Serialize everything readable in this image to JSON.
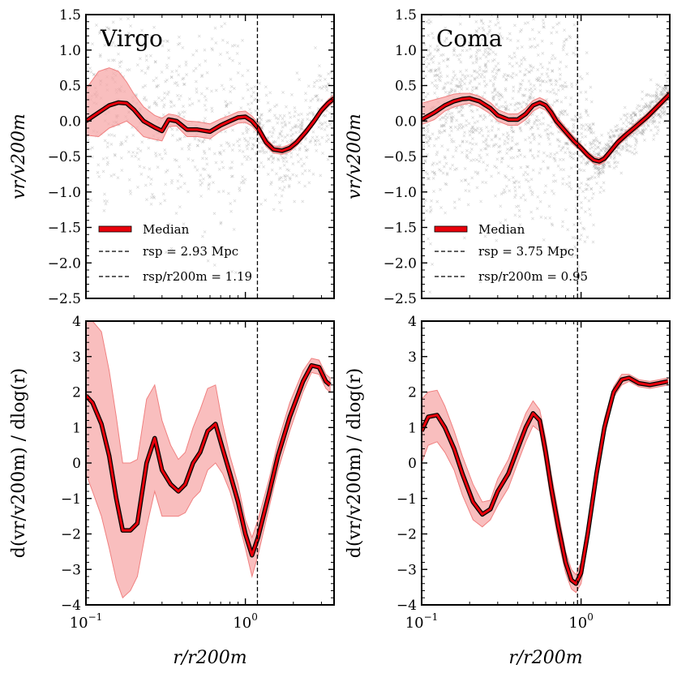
{
  "figure": {
    "xlabel": "r/r200m",
    "ylabel_top": "vr/v200m",
    "ylabel_bottom": "d(vr/v200m) / dlog(r)",
    "x_tick_labels": [
      "10^-1",
      "10^0"
    ],
    "top_y_tick_labels": [
      "1.5",
      "1.0",
      "0.5",
      "0.0",
      "−0.5",
      "−1.0",
      "−1.5",
      "−2.0",
      "−2.5"
    ],
    "bottom_y_tick_labels": [
      "4",
      "3",
      "2",
      "1",
      "0",
      "−1",
      "−2",
      "−3",
      "−4"
    ],
    "colors": {
      "median": "#e8000b",
      "band": "#f7a8a8",
      "scatter": "#9a9a9a",
      "rsp_line": "#000000"
    }
  },
  "chart_data": [
    {
      "type": "line",
      "panel": "top-left",
      "title": "Virgo",
      "xscale": "log",
      "xlim": [
        0.1,
        3.6
      ],
      "ylim": [
        -2.5,
        1.5
      ],
      "x": [
        0.1,
        0.12,
        0.14,
        0.16,
        0.18,
        0.2,
        0.23,
        0.27,
        0.3,
        0.33,
        0.37,
        0.43,
        0.5,
        0.6,
        0.7,
        0.8,
        0.9,
        1.0,
        1.1,
        1.2,
        1.35,
        1.5,
        1.7,
        1.9,
        2.1,
        2.4,
        2.7,
        3.0,
        3.3,
        3.6
      ],
      "series": [
        {
          "name": "Median",
          "values": [
            0.0,
            0.12,
            0.22,
            0.26,
            0.25,
            0.16,
            0.0,
            -0.09,
            -0.14,
            0.02,
            0.0,
            -0.12,
            -0.12,
            -0.15,
            -0.06,
            0.0,
            0.05,
            0.06,
            0.0,
            -0.1,
            -0.3,
            -0.4,
            -0.42,
            -0.38,
            -0.3,
            -0.15,
            0.0,
            0.15,
            0.25,
            0.32
          ]
        },
        {
          "name": "band_upper",
          "values": [
            0.45,
            0.7,
            0.75,
            0.7,
            0.55,
            0.38,
            0.2,
            0.08,
            0.04,
            0.1,
            0.08,
            0.0,
            -0.01,
            -0.04,
            0.03,
            0.08,
            0.13,
            0.14,
            0.07,
            -0.03,
            -0.24,
            -0.35,
            -0.37,
            -0.33,
            -0.25,
            -0.1,
            0.05,
            0.2,
            0.3,
            0.37
          ]
        },
        {
          "name": "band_lower",
          "values": [
            -0.2,
            -0.22,
            -0.1,
            -0.05,
            0.0,
            -0.08,
            -0.22,
            -0.26,
            -0.28,
            -0.08,
            -0.07,
            -0.22,
            -0.22,
            -0.25,
            -0.14,
            -0.08,
            -0.03,
            -0.02,
            -0.07,
            -0.17,
            -0.36,
            -0.45,
            -0.47,
            -0.43,
            -0.35,
            -0.2,
            -0.05,
            0.1,
            0.2,
            0.27
          ]
        }
      ],
      "vline_x": 1.19,
      "legend": {
        "position": "lower-left",
        "entries": [
          "Median",
          "rsp = 2.93 Mpc",
          "rsp/r200m = 1.19"
        ]
      }
    },
    {
      "type": "line",
      "panel": "top-right",
      "title": "Coma",
      "xscale": "log",
      "xlim": [
        0.1,
        3.6
      ],
      "ylim": [
        -2.5,
        1.5
      ],
      "x": [
        0.1,
        0.12,
        0.14,
        0.16,
        0.18,
        0.2,
        0.23,
        0.27,
        0.3,
        0.35,
        0.4,
        0.45,
        0.5,
        0.55,
        0.6,
        0.65,
        0.7,
        0.8,
        0.9,
        1.0,
        1.1,
        1.2,
        1.3,
        1.4,
        1.5,
        1.7,
        1.9,
        2.2,
        2.6,
        3.0,
        3.6
      ],
      "series": [
        {
          "name": "Median",
          "values": [
            0.02,
            0.12,
            0.22,
            0.28,
            0.31,
            0.32,
            0.28,
            0.18,
            0.08,
            0.02,
            0.02,
            0.1,
            0.22,
            0.26,
            0.22,
            0.12,
            0.0,
            -0.15,
            -0.28,
            -0.38,
            -0.48,
            -0.55,
            -0.57,
            -0.53,
            -0.45,
            -0.3,
            -0.2,
            -0.08,
            0.06,
            0.2,
            0.38
          ]
        },
        {
          "name": "band_upper",
          "values": [
            0.25,
            0.3,
            0.34,
            0.38,
            0.39,
            0.39,
            0.35,
            0.26,
            0.16,
            0.1,
            0.1,
            0.18,
            0.29,
            0.33,
            0.29,
            0.19,
            0.07,
            -0.09,
            -0.22,
            -0.33,
            -0.43,
            -0.5,
            -0.52,
            -0.48,
            -0.4,
            -0.25,
            -0.15,
            -0.03,
            0.11,
            0.25,
            0.43
          ]
        },
        {
          "name": "band_lower",
          "values": [
            -0.05,
            0.02,
            0.14,
            0.2,
            0.23,
            0.25,
            0.2,
            0.1,
            0.0,
            -0.06,
            -0.06,
            0.02,
            0.14,
            0.19,
            0.15,
            0.05,
            -0.07,
            -0.21,
            -0.34,
            -0.43,
            -0.53,
            -0.6,
            -0.62,
            -0.58,
            -0.5,
            -0.35,
            -0.25,
            -0.13,
            0.01,
            0.15,
            0.33
          ]
        }
      ],
      "vline_x": 0.95,
      "legend": {
        "position": "lower-left",
        "entries": [
          "Median",
          "rsp = 3.75 Mpc",
          "rsp/r200m = 0.95"
        ]
      }
    },
    {
      "type": "line",
      "panel": "bottom-left",
      "xscale": "log",
      "xlim": [
        0.1,
        3.6
      ],
      "ylim": [
        -4,
        4
      ],
      "x": [
        0.1,
        0.11,
        0.125,
        0.14,
        0.155,
        0.17,
        0.19,
        0.21,
        0.24,
        0.27,
        0.3,
        0.34,
        0.38,
        0.42,
        0.47,
        0.52,
        0.58,
        0.65,
        0.72,
        0.8,
        0.9,
        1.0,
        1.1,
        1.2,
        1.4,
        1.6,
        1.9,
        2.3,
        2.6,
        2.9,
        3.2,
        3.4
      ],
      "series": [
        {
          "name": "Median",
          "values": [
            1.9,
            1.7,
            1.1,
            0.2,
            -1.0,
            -1.9,
            -1.9,
            -1.7,
            0.0,
            0.7,
            -0.2,
            -0.6,
            -0.8,
            -0.6,
            0.0,
            0.3,
            0.9,
            1.1,
            0.4,
            -0.3,
            -1.1,
            -2.0,
            -2.6,
            -2.1,
            -0.9,
            0.2,
            1.3,
            2.3,
            2.75,
            2.7,
            2.3,
            2.2
          ]
        },
        {
          "name": "band_upper",
          "values": [
            4.0,
            4.0,
            3.7,
            2.6,
            1.3,
            0.0,
            0.0,
            0.1,
            1.8,
            2.2,
            1.2,
            0.5,
            0.1,
            0.3,
            1.0,
            1.5,
            2.1,
            2.2,
            1.1,
            0.2,
            -0.6,
            -1.6,
            -2.1,
            -1.6,
            -0.5,
            0.6,
            1.7,
            2.6,
            2.95,
            2.9,
            2.5,
            2.4
          ]
        },
        {
          "name": "band_lower",
          "values": [
            -0.3,
            -0.8,
            -1.5,
            -2.4,
            -3.3,
            -3.8,
            -3.6,
            -3.2,
            -1.8,
            -0.8,
            -1.5,
            -1.5,
            -1.5,
            -1.4,
            -1.0,
            -0.8,
            -0.2,
            0.0,
            -0.3,
            -0.8,
            -1.6,
            -2.4,
            -3.2,
            -2.6,
            -1.3,
            -0.2,
            0.9,
            2.0,
            2.55,
            2.5,
            2.1,
            2.0
          ]
        }
      ],
      "vline_x": 1.19
    },
    {
      "type": "line",
      "panel": "bottom-right",
      "xscale": "log",
      "xlim": [
        0.1,
        3.6
      ],
      "ylim": [
        -4,
        4
      ],
      "x": [
        0.1,
        0.11,
        0.125,
        0.14,
        0.16,
        0.18,
        0.21,
        0.24,
        0.27,
        0.3,
        0.35,
        0.4,
        0.45,
        0.5,
        0.55,
        0.6,
        0.65,
        0.72,
        0.8,
        0.87,
        0.93,
        1.0,
        1.1,
        1.25,
        1.4,
        1.6,
        1.8,
        2.0,
        2.3,
        2.7,
        3.1,
        3.5
      ],
      "series": [
        {
          "name": "Median",
          "values": [
            0.9,
            1.3,
            1.35,
            1.0,
            0.4,
            -0.3,
            -1.1,
            -1.45,
            -1.3,
            -0.8,
            -0.3,
            0.4,
            1.0,
            1.4,
            1.2,
            0.3,
            -0.7,
            -1.8,
            -2.8,
            -3.3,
            -3.4,
            -3.1,
            -2.0,
            -0.3,
            1.0,
            2.0,
            2.35,
            2.4,
            2.25,
            2.2,
            2.25,
            2.3
          ]
        },
        {
          "name": "band_upper",
          "values": [
            1.8,
            2.0,
            2.05,
            1.6,
            0.9,
            0.2,
            -0.6,
            -1.1,
            -1.05,
            -0.45,
            0.1,
            0.8,
            1.4,
            1.75,
            1.5,
            0.7,
            -0.3,
            -1.4,
            -2.5,
            -3.0,
            -3.15,
            -2.8,
            -1.7,
            0.0,
            1.25,
            2.15,
            2.5,
            2.5,
            2.35,
            2.3,
            2.35,
            2.4
          ]
        },
        {
          "name": "band_lower",
          "values": [
            0.0,
            0.5,
            0.6,
            0.3,
            -0.2,
            -0.9,
            -1.6,
            -1.8,
            -1.6,
            -1.2,
            -0.7,
            0.0,
            0.6,
            1.05,
            0.9,
            -0.1,
            -1.1,
            -2.2,
            -3.1,
            -3.55,
            -3.65,
            -3.4,
            -2.3,
            -0.6,
            0.75,
            1.85,
            2.2,
            2.3,
            2.15,
            2.1,
            2.15,
            2.2
          ]
        }
      ],
      "vline_x": 0.95
    }
  ]
}
